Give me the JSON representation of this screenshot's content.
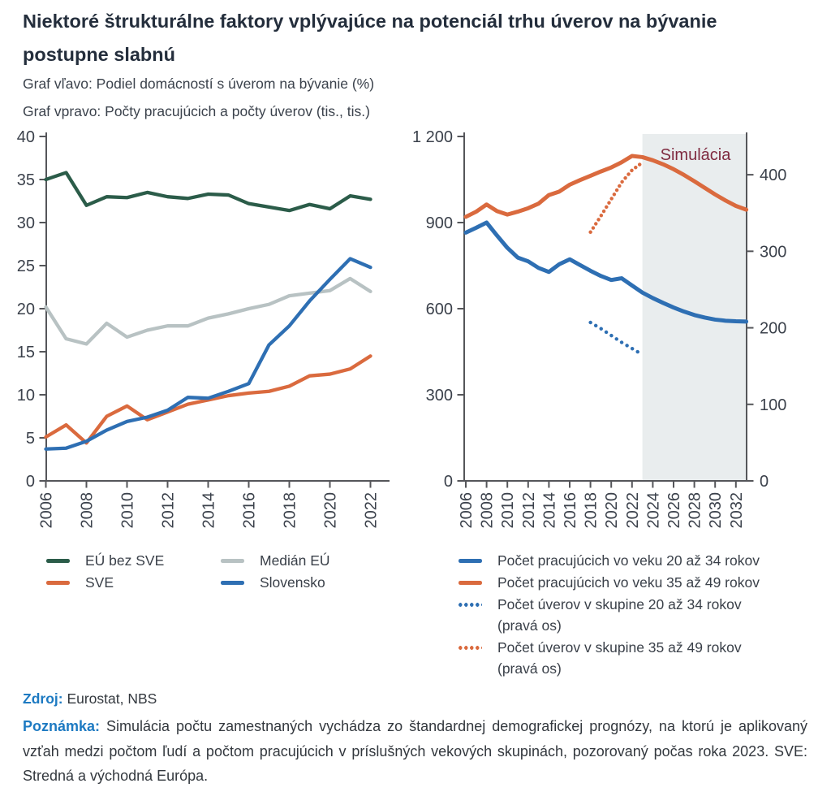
{
  "page": {
    "title": "Niektoré štrukturálne faktory vplývajúce na potenciál trhu úverov na bývanie postupne slabnú",
    "subtitle_left": "Graf vľavo: Podiel domácností s úverom na bývanie (%)",
    "subtitle_right": "Graf vpravo: Počty pracujúcich a počty úverov (tis., tis.)",
    "source_label": "Zdroj:",
    "source_text": "Eurostat, NBS",
    "note_label": "Poznámka:",
    "note_text": "Simulácia počtu zamestnaných vychádza zo štandardnej demografickej prognózy, na ktorú je aplikovaný vzťah medzi počtom ľudí a počtom pracujúcich v príslušných vekových skupinách, pozorovaný počas roka 2023. SVE: Stredná a východná Európa."
  },
  "colors": {
    "blue": "#2e6fb3",
    "orange": "#da6a3e",
    "green": "#2b5c49",
    "gray": "#b8c2c3",
    "maroon": "#7f2b40",
    "accent_blue_text": "#1d7ac2",
    "axis": "#55565a",
    "tick_text": "#3b414b",
    "shade": "#e9edee"
  },
  "chart_data": [
    {
      "type": "line",
      "title": "Podiel domácností s úverom na bývanie (%)",
      "x_start": 2006,
      "x_end": 2022,
      "x_tick_step": 2,
      "ylim": [
        0,
        40
      ],
      "yticks": [
        0,
        5,
        10,
        15,
        20,
        25,
        30,
        35,
        40
      ],
      "grid": false,
      "legend_position": "below",
      "legend_order": [
        "EÚ bez SVE",
        "SVE",
        "Medián EÚ",
        "Slovensko"
      ],
      "series": [
        {
          "name": "EÚ bez SVE",
          "color_key": "green",
          "style": "solid",
          "values": [
            35.0,
            35.8,
            32.0,
            33.0,
            32.9,
            33.5,
            33.0,
            32.8,
            33.3,
            33.2,
            32.2,
            31.8,
            31.4,
            32.1,
            31.6,
            33.1,
            32.7
          ]
        },
        {
          "name": "Medián EÚ",
          "color_key": "gray",
          "style": "solid",
          "values": [
            20.2,
            16.5,
            15.9,
            18.3,
            16.7,
            17.5,
            18.0,
            18.0,
            18.9,
            19.4,
            20.0,
            20.5,
            21.5,
            21.8,
            22.1,
            23.5,
            22.0
          ]
        },
        {
          "name": "SVE",
          "color_key": "orange",
          "style": "solid",
          "values": [
            5.1,
            6.5,
            4.4,
            7.5,
            8.7,
            7.1,
            8.0,
            8.9,
            9.4,
            9.9,
            10.2,
            10.4,
            11.0,
            12.2,
            12.4,
            13.0,
            14.5
          ]
        },
        {
          "name": "Slovensko",
          "color_key": "blue",
          "style": "solid",
          "values": [
            3.7,
            3.8,
            4.6,
            5.9,
            6.9,
            7.4,
            8.2,
            9.7,
            9.6,
            10.4,
            11.3,
            15.8,
            18.0,
            20.9,
            23.4,
            25.8,
            24.8
          ]
        }
      ]
    },
    {
      "type": "line",
      "title": "Počty pracujúcich a počty úverov (tis., tis.)",
      "x_start": 2006,
      "x_end": 2033,
      "x_tick_step": 2,
      "x_tick_end": 2032,
      "ylim_left": [
        0,
        1200
      ],
      "yticks_left": {
        "values": [
          0,
          300,
          600,
          900,
          1200
        ],
        "labels": [
          "0",
          "300",
          "600",
          "900",
          "1 200"
        ]
      },
      "ylim_right": [
        0,
        450
      ],
      "yticks_right": [
        0,
        100,
        200,
        300,
        400
      ],
      "grid": false,
      "simulation": {
        "label": "Simulácia",
        "from": 2023
      },
      "series": [
        {
          "name": "Počet pracujúcich vo veku 20 až 34 rokov",
          "axis": "left",
          "style": "solid",
          "color_key": "blue",
          "x_start": 2006,
          "values": [
            865,
            882,
            900,
            855,
            812,
            778,
            765,
            742,
            728,
            755,
            772,
            752,
            732,
            714,
            700,
            706,
            681,
            656,
            637,
            620,
            604,
            590,
            578,
            569,
            562,
            558,
            556,
            555
          ]
        },
        {
          "name": "Počet pracujúcich vo veku 35 až 49 rokov",
          "axis": "left",
          "style": "solid",
          "color_key": "orange",
          "x_start": 2006,
          "values": [
            920,
            938,
            963,
            940,
            928,
            938,
            950,
            966,
            996,
            1008,
            1032,
            1048,
            1063,
            1078,
            1092,
            1110,
            1132,
            1128,
            1117,
            1103,
            1086,
            1066,
            1044,
            1021,
            998,
            977,
            958,
            945
          ]
        },
        {
          "name": "Počet úverov v skupine 20 až 34 rokov",
          "sub": "(pravá os)",
          "axis": "right",
          "style": "dotted",
          "color_key": "blue",
          "x_start": 2018,
          "values": [
            207,
            199,
            190,
            181,
            173,
            165
          ]
        },
        {
          "name": "Počet úverov v skupine 35 až 49 rokov",
          "sub": "(pravá os)",
          "axis": "right",
          "style": "dotted",
          "color_key": "orange",
          "x_start": 2018,
          "values": [
            325,
            346,
            368,
            390,
            406,
            416
          ]
        }
      ]
    }
  ]
}
